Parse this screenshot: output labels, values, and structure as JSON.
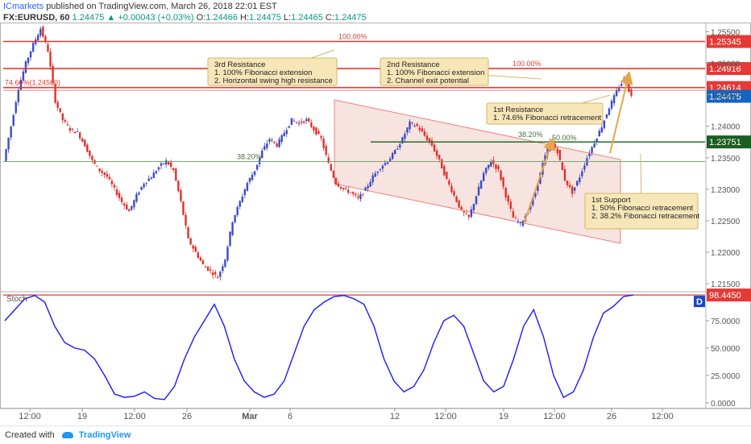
{
  "header": {
    "author": "ICmarkets",
    "published": "published on TradingView.com, March 26, 2018 22:01 EST",
    "symbol": "FX:EURUSD, 60",
    "last": "1.24475",
    "change": "+0.00043 (+0.03%)",
    "ohlc": {
      "o": "1.24466",
      "h": "1.24475",
      "l": "1.24465",
      "c": "1.24475"
    }
  },
  "footer": {
    "created_with": "Created with",
    "brand": "TradingView"
  },
  "colors": {
    "candle_up": "#3b4bc4",
    "candle_down": "#e0302b",
    "resistance": "#e53935",
    "support": "#2e7d32",
    "channel": "#f0c8c2",
    "arrow": "#e8a44a",
    "note_bg": "#f7e6b8",
    "note_border": "#d4b56a",
    "stoch": "#1a1aff"
  },
  "chart_data": [
    {
      "type": "candlestick",
      "symbol": "FX:EURUSD",
      "interval": "60",
      "ylim": [
        1.214,
        1.2562
      ],
      "y_ticks": [
        "1.25500",
        "1.25000",
        "1.24500",
        "1.24000",
        "1.23500",
        "1.23000",
        "1.22500",
        "1.22000",
        "1.21500"
      ],
      "x_ticks": [
        "12:00",
        "19",
        "12:00",
        "26",
        "Mar",
        "6",
        "12",
        "12:00",
        "19",
        "12:00",
        "26",
        "12:00"
      ],
      "path": [
        1.2345,
        1.24,
        1.246,
        1.25,
        1.253,
        1.2555,
        1.252,
        1.244,
        1.241,
        1.2395,
        1.239,
        1.237,
        1.2345,
        1.233,
        1.232,
        1.23,
        1.228,
        1.2265,
        1.229,
        1.231,
        1.232,
        1.2335,
        1.2345,
        1.233,
        1.228,
        1.222,
        1.22,
        1.218,
        1.217,
        1.216,
        1.219,
        1.225,
        1.228,
        1.231,
        1.233,
        1.236,
        1.238,
        1.237,
        1.239,
        1.241,
        1.2405,
        1.241,
        1.2395,
        1.238,
        1.234,
        1.231,
        1.23,
        1.2295,
        1.2285,
        1.23,
        1.232,
        1.2335,
        1.2345,
        1.236,
        1.238,
        1.2405,
        1.24,
        1.2385,
        1.237,
        1.2345,
        1.2315,
        1.229,
        1.2265,
        1.2255,
        1.229,
        1.2325,
        1.2345,
        1.233,
        1.229,
        1.2255,
        1.2245,
        1.2265,
        1.2295,
        1.234,
        1.2375,
        1.236,
        1.2315,
        1.2295,
        1.232,
        1.235,
        1.2375,
        1.24,
        1.243,
        1.2455,
        1.2475,
        1.24475
      ],
      "levels": [
        {
          "price": 1.25345,
          "label": "1.25345",
          "kind": "resistance"
        },
        {
          "price": 1.24916,
          "label": "1.24916",
          "kind": "resistance"
        },
        {
          "price": 1.24614,
          "label": "1.24614",
          "kind": "resistance"
        },
        {
          "price": 1.24475,
          "label": "1.24475",
          "kind": "last"
        },
        {
          "price": 1.23751,
          "label": "1.23751",
          "kind": "support"
        }
      ],
      "fib_labels": [
        {
          "text": "100.00%",
          "price": 1.25345
        },
        {
          "text": "100.00%",
          "price": 1.24916
        },
        {
          "text": "74.60%(1.24560)",
          "price": 1.24614
        },
        {
          "text": "38.20%",
          "price": 1.2344
        },
        {
          "text": "38.20%",
          "price": 1.2379
        },
        {
          "text": "50.00%",
          "price": 1.2374
        }
      ],
      "annotations": [
        {
          "title": "3rd Resistance",
          "lines": [
            "1. 100% Fibonacci extension",
            "2. Horizontal swing high resistance"
          ]
        },
        {
          "title": "2nd Resistance",
          "lines": [
            "1. 100% Fibonacci extension",
            "2. Channel exit potential"
          ]
        },
        {
          "title": "1st Resistance",
          "lines": [
            "1. 74.6% Fibonacci retracement"
          ]
        },
        {
          "title": "1st Support",
          "lines": [
            "1. 50% Fibonacci retracement",
            "2. 38.2% Fibonacci retracement"
          ]
        }
      ]
    },
    {
      "type": "line",
      "name": "Stoch",
      "ylim": [
        -6,
        100
      ],
      "y_ticks": [
        "75.0000",
        "50.0000",
        "25.0000",
        "0.0000"
      ],
      "current_label": "98.4450",
      "current": 98.445,
      "badge": "D",
      "values": [
        75,
        85,
        95,
        98,
        92,
        70,
        55,
        50,
        48,
        40,
        25,
        8,
        5,
        6,
        10,
        4,
        3,
        15,
        40,
        60,
        75,
        90,
        70,
        40,
        20,
        10,
        5,
        8,
        20,
        45,
        70,
        85,
        92,
        97,
        98,
        95,
        90,
        70,
        40,
        20,
        10,
        15,
        30,
        55,
        75,
        80,
        70,
        45,
        20,
        10,
        15,
        40,
        70,
        85,
        60,
        25,
        5,
        10,
        30,
        60,
        82,
        88,
        97,
        98.445
      ]
    }
  ]
}
